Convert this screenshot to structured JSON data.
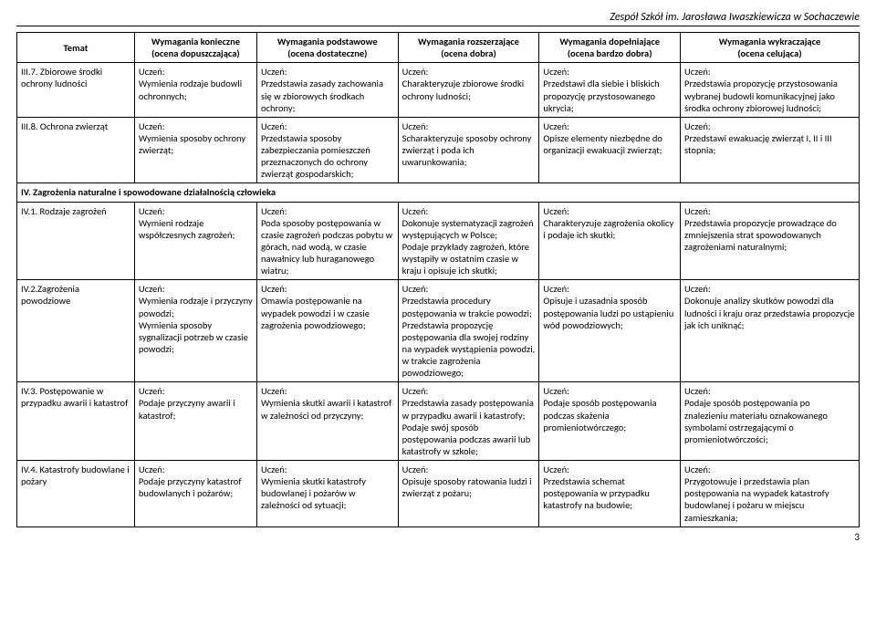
{
  "header_text": "Zespół Szkół im. Jarosława Iwaszkiewicza  w Sochaczewie",
  "page_number": "3",
  "columns": [
    {
      "main": "Temat",
      "sub": ""
    },
    {
      "main": "Wymagania konieczne",
      "sub": "(ocena dopuszczająca)"
    },
    {
      "main": "Wymagania podstawowe",
      "sub": "(ocena dostateczne)"
    },
    {
      "main": "Wymagania rozszerzające",
      "sub": "(ocena dobra)"
    },
    {
      "main": "Wymagania dopełniające",
      "sub": "(ocena bardzo dobra)"
    },
    {
      "main": "Wymagania wykraczające",
      "sub": "(ocena celująca)"
    }
  ],
  "rows": [
    {
      "c0": "III.7. Zbiorowe środki ochrony ludności",
      "c1": "Uczeń:\nWymienia rodzaje budowli ochronnych;",
      "c2": "Uczeń:\nPrzedstawia zasady zachowania się w zbiorowych środkach ochrony;",
      "c3": "Uczeń:\nCharakteryzuje zbiorowe środki ochrony ludności;",
      "c4": "Uczeń:\nPrzedstawi dla siebie i bliskich propozycję przystosowanego ukrycia;",
      "c5": "Uczeń:\nPrzedstawia propozycję przystosowania wybranej budowli komunikacyjnej jako środka ochrony zbiorowej ludności;"
    },
    {
      "c0": "III.8. Ochrona zwierząt",
      "c1": "Uczeń:\nWymienia sposoby ochrony zwierząt;",
      "c2": "Uczeń:\nPrzedstawia sposoby zabezpieczania pomieszczeń przeznaczonych do ochrony zwierząt gospodarskich;",
      "c3": "Uczeń:\nScharakteryzuje sposoby ochrony zwierząt i poda ich uwarunkowania;",
      "c4": "Uczeń:\nOpisze elementy niezbędne do organizacji ewakuacji zwierząt;",
      "c5": "Uczeń:\nPrzedstawi ewakuację zwierząt I, II i III stopnia;"
    },
    {
      "section": true,
      "c0": "IV. Zagrożenia naturalne i spowodowane działalnością człowieka"
    },
    {
      "c0": "IV.1. Rodzaje zagrożeń",
      "c1": "Uczeń:\nWymieni rodzaje współczesnych zagrożeń;",
      "c2": "Uczeń:\nPoda sposoby postępowania w czasie zagrożeń podczas pobytu w górach,  nad wodą, w czasie nawałnicy lub huraganowego wiatru;",
      "c3": "Uczeń:\nDokonuje systematyzacji zagrożeń występujących w Polsce;\nPodaje przykłady zagrożeń, które wystąpiły w ostatnim czasie w kraju i opisuje ich skutki;",
      "c4": "Uczeń:\nCharakteryzuje zagrożenia okolicy i podaje ich skutki;",
      "c5": "Uczeń:\nPrzedstawia propozycje prowadzące do zmniejszenia strat spowodowanych zagrożeniami naturalnymi;"
    },
    {
      "c0": "IV.2.Zagrożenia powodziowe",
      "c1": "Uczeń:\nWymienia rodzaje i przyczyny powodzi;\nWymienia sposoby sygnalizacji potrzeb w czasie powodzi;",
      "c2": "Uczeń:\nOmawia postępowanie na wypadek powodzi i w czasie zagrożenia powodziowego;",
      "c3": "Uczeń:\nPrzedstawia procedury postępowania w trakcie powodzi;\nPrzedstawia propozycję postępowania dla swojej rodziny na wypadek wystąpienia powodzi, w trakcie zagrożenia powodziowego;",
      "c4": "Uczeń:\nOpisuje i uzasadnia sposób postępowania ludzi po ustąpieniu wód powodziowych;",
      "c5": "Uczeń:\nDokonuje analizy skutków powodzi dla ludności i kraju oraz przedstawia propozycje jak ich uniknąć;"
    },
    {
      "c0": "IV.3. Postępowanie w przypadku awarii i katastrof",
      "c1": "Uczeń:\nPodaje przyczyny awarii i katastrof;",
      "c2": "Uczeń:\nWymienia skutki awarii i katastrof w zależności od przyczyny;",
      "c3": "Uczeń:\nPrzedstawia zasady postępowania w przypadku awarii i katastrofy;\nPodaje swój sposób postępowania podczas awarii lub katastrofy w szkole;",
      "c4": "Uczeń:\nPodaje sposób postępowania podczas skażenia promieniotwórczego;",
      "c5": "Uczeń:\nPodaje sposób postępowania po znalezieniu materiału oznakowanego symbolami ostrzegającymi o promieniotwórczości;"
    },
    {
      "c0": "IV.4. Katastrofy budowlane i pożary",
      "c1": "Uczeń:\nPodaje przyczyny katastrof budowlanych i pożarów;",
      "c2": "Uczeń:\nWymienia skutki katastrofy budowlanej i pożarów w zależności od sytuacji;",
      "c3": "Uczeń:\nOpisuje sposoby ratowania ludzi i zwierząt z pożaru;",
      "c4": "Uczeń:\nPrzedstawia schemat postępowania w przypadku katastrofy na budowie;",
      "c5": "Uczeń:\nPrzygotowuje i przedstawia plan postępowania na wypadek katastrofy budowlanej i pożaru w miejscu zamieszkania;"
    }
  ]
}
